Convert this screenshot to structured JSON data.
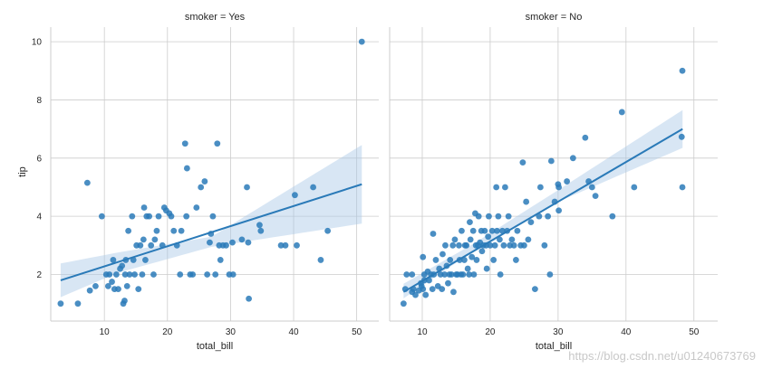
{
  "chart_data": [
    {
      "type": "scatter",
      "title": "smoker = Yes",
      "xlabel": "total_bill",
      "ylabel": "tip",
      "xlim": [
        1.5,
        53.5
      ],
      "ylim": [
        0.4,
        10.5
      ],
      "xticks": [
        10,
        20,
        30,
        40,
        50
      ],
      "yticks": [
        2,
        4,
        6,
        8,
        10
      ],
      "grid": true,
      "colors": {
        "points": "#2a7ab8",
        "line": "#2a7ab8",
        "band": "#a9c8e6"
      },
      "regression": {
        "x": [
          3.07,
          50.81
        ],
        "y": [
          1.8,
          5.1
        ]
      },
      "confidence_band": {
        "x": [
          3.07,
          12,
          27,
          50.81
        ],
        "lower": [
          1.22,
          2.05,
          2.95,
          3.75
        ],
        "upper": [
          2.38,
          2.75,
          3.3,
          6.45
        ]
      },
      "points": [
        [
          3.07,
          1.0
        ],
        [
          5.8,
          1.0
        ],
        [
          7.3,
          5.15
        ],
        [
          7.7,
          1.45
        ],
        [
          8.6,
          1.6
        ],
        [
          9.6,
          4.0
        ],
        [
          10.3,
          2.0
        ],
        [
          10.6,
          1.6
        ],
        [
          10.8,
          2.0
        ],
        [
          11.2,
          1.75
        ],
        [
          11.4,
          2.5
        ],
        [
          11.6,
          1.5
        ],
        [
          11.9,
          2.0
        ],
        [
          12.2,
          1.5
        ],
        [
          12.5,
          2.2
        ],
        [
          12.8,
          2.3
        ],
        [
          13.0,
          1.0
        ],
        [
          13.2,
          1.1
        ],
        [
          13.3,
          2.0
        ],
        [
          13.6,
          1.6
        ],
        [
          13.4,
          2.5
        ],
        [
          13.8,
          3.5
        ],
        [
          14.0,
          2.0
        ],
        [
          14.4,
          4.0
        ],
        [
          14.6,
          2.5
        ],
        [
          14.8,
          2.0
        ],
        [
          15.1,
          3.0
        ],
        [
          15.4,
          1.5
        ],
        [
          15.7,
          3.0
        ],
        [
          16.0,
          2.0
        ],
        [
          16.2,
          3.2
        ],
        [
          16.3,
          4.3
        ],
        [
          16.5,
          2.5
        ],
        [
          16.7,
          4.0
        ],
        [
          17.1,
          4.0
        ],
        [
          17.4,
          3.0
        ],
        [
          17.8,
          2.0
        ],
        [
          18.0,
          3.2
        ],
        [
          18.3,
          3.5
        ],
        [
          18.6,
          4.0
        ],
        [
          19.2,
          3.0
        ],
        [
          19.5,
          4.3
        ],
        [
          19.8,
          4.2
        ],
        [
          20.3,
          4.1
        ],
        [
          20.6,
          4.0
        ],
        [
          21.0,
          3.5
        ],
        [
          21.5,
          3.0
        ],
        [
          22.0,
          2.0
        ],
        [
          22.2,
          3.5
        ],
        [
          22.8,
          6.5
        ],
        [
          23.0,
          4.0
        ],
        [
          23.1,
          5.65
        ],
        [
          23.6,
          2.0
        ],
        [
          24.0,
          2.0
        ],
        [
          24.6,
          4.3
        ],
        [
          25.3,
          5.0
        ],
        [
          25.9,
          5.2
        ],
        [
          26.3,
          2.0
        ],
        [
          26.7,
          3.1
        ],
        [
          26.9,
          3.4
        ],
        [
          27.2,
          4.0
        ],
        [
          27.6,
          2.0
        ],
        [
          27.9,
          6.5
        ],
        [
          28.2,
          3.0
        ],
        [
          28.4,
          2.5
        ],
        [
          28.8,
          3.0
        ],
        [
          29.3,
          3.0
        ],
        [
          29.8,
          2.0
        ],
        [
          30.4,
          2.0
        ],
        [
          30.3,
          3.1
        ],
        [
          31.8,
          3.2
        ],
        [
          32.8,
          3.1
        ],
        [
          32.6,
          5.0
        ],
        [
          32.9,
          1.17
        ],
        [
          34.6,
          3.7
        ],
        [
          34.8,
          3.5
        ],
        [
          38.0,
          3.0
        ],
        [
          38.7,
          3.0
        ],
        [
          40.2,
          4.73
        ],
        [
          40.5,
          3.0
        ],
        [
          43.1,
          5.0
        ],
        [
          44.3,
          2.5
        ],
        [
          45.4,
          3.5
        ],
        [
          50.81,
          10.0
        ]
      ]
    },
    {
      "type": "scatter",
      "title": "smoker = No",
      "xlabel": "total_bill",
      "ylabel": "",
      "xlim": [
        5.2,
        53.5
      ],
      "ylim": [
        0.4,
        10.5
      ],
      "xticks": [
        10,
        20,
        30,
        40,
        50
      ],
      "yticks": [
        2,
        4,
        6,
        8,
        10
      ],
      "grid": true,
      "colors": {
        "points": "#2a7ab8",
        "line": "#2a7ab8",
        "band": "#a9c8e6"
      },
      "regression": {
        "x": [
          7.25,
          48.33
        ],
        "y": [
          1.4,
          7.0
        ]
      },
      "confidence_band": {
        "x": [
          7.25,
          17.5,
          30,
          48.33
        ],
        "lower": [
          1.18,
          2.8,
          4.5,
          6.35
        ],
        "upper": [
          1.68,
          3.05,
          4.9,
          7.65
        ]
      },
      "points": [
        [
          7.25,
          1.0
        ],
        [
          7.5,
          1.5
        ],
        [
          7.7,
          2.0
        ],
        [
          8.5,
          2.0
        ],
        [
          8.5,
          1.4
        ],
        [
          8.7,
          1.5
        ],
        [
          9.0,
          1.3
        ],
        [
          9.5,
          1.45
        ],
        [
          9.8,
          1.7
        ],
        [
          9.9,
          1.6
        ],
        [
          10.1,
          1.5
        ],
        [
          10.3,
          1.8
        ],
        [
          10.3,
          2.0
        ],
        [
          10.1,
          2.6
        ],
        [
          10.5,
          1.3
        ],
        [
          10.8,
          2.1
        ],
        [
          11.0,
          1.8
        ],
        [
          11.3,
          2.0
        ],
        [
          11.5,
          1.5
        ],
        [
          11.7,
          2.0
        ],
        [
          11.6,
          3.4
        ],
        [
          12.0,
          2.5
        ],
        [
          12.3,
          1.6
        ],
        [
          12.5,
          2.2
        ],
        [
          12.7,
          2.0
        ],
        [
          12.9,
          1.5
        ],
        [
          13.0,
          2.7
        ],
        [
          13.3,
          2.0
        ],
        [
          13.4,
          3.0
        ],
        [
          13.6,
          2.3
        ],
        [
          13.8,
          1.7
        ],
        [
          14.0,
          2.0
        ],
        [
          14.1,
          2.5
        ],
        [
          14.3,
          2.0
        ],
        [
          14.5,
          3.0
        ],
        [
          14.6,
          1.4
        ],
        [
          14.8,
          3.2
        ],
        [
          15.0,
          2.0
        ],
        [
          15.2,
          2.0
        ],
        [
          15.4,
          3.0
        ],
        [
          15.5,
          2.5
        ],
        [
          15.7,
          2.0
        ],
        [
          15.8,
          3.5
        ],
        [
          16.0,
          2.0
        ],
        [
          16.2,
          2.5
        ],
        [
          16.3,
          3.0
        ],
        [
          16.5,
          3.0
        ],
        [
          16.7,
          2.2
        ],
        [
          16.9,
          2.0
        ],
        [
          17.0,
          3.8
        ],
        [
          17.1,
          3.2
        ],
        [
          17.3,
          2.6
        ],
        [
          17.5,
          3.5
        ],
        [
          17.6,
          2.0
        ],
        [
          17.8,
          4.1
        ],
        [
          17.9,
          3.0
        ],
        [
          18.0,
          2.5
        ],
        [
          18.2,
          3.0
        ],
        [
          18.3,
          4.0
        ],
        [
          18.5,
          3.1
        ],
        [
          18.7,
          3.5
        ],
        [
          18.8,
          2.8
        ],
        [
          19.0,
          3.0
        ],
        [
          19.2,
          3.5
        ],
        [
          19.4,
          3.0
        ],
        [
          19.5,
          2.2
        ],
        [
          19.7,
          3.3
        ],
        [
          19.8,
          4.0
        ],
        [
          20.0,
          3.0
        ],
        [
          20.3,
          3.5
        ],
        [
          20.5,
          2.5
        ],
        [
          20.7,
          3.0
        ],
        [
          20.9,
          5.0
        ],
        [
          21.0,
          3.5
        ],
        [
          21.2,
          4.0
        ],
        [
          21.4,
          3.2
        ],
        [
          21.5,
          2.0
        ],
        [
          21.8,
          3.5
        ],
        [
          22.0,
          3.0
        ],
        [
          22.2,
          5.0
        ],
        [
          22.5,
          3.5
        ],
        [
          22.7,
          4.0
        ],
        [
          22.9,
          3.0
        ],
        [
          23.2,
          3.2
        ],
        [
          23.5,
          3.0
        ],
        [
          23.8,
          2.5
        ],
        [
          24.0,
          3.5
        ],
        [
          24.5,
          3.0
        ],
        [
          24.8,
          5.85
        ],
        [
          25.0,
          3.0
        ],
        [
          25.3,
          4.5
        ],
        [
          25.6,
          3.2
        ],
        [
          26.0,
          3.8
        ],
        [
          26.6,
          1.5
        ],
        [
          27.2,
          4.0
        ],
        [
          27.4,
          5.0
        ],
        [
          28.0,
          3.0
        ],
        [
          28.5,
          4.0
        ],
        [
          28.8,
          2.0
        ],
        [
          29.0,
          5.9
        ],
        [
          29.5,
          4.5
        ],
        [
          30.0,
          5.1
        ],
        [
          30.1,
          5.0
        ],
        [
          30.1,
          4.2
        ],
        [
          31.3,
          5.2
        ],
        [
          32.2,
          6.0
        ],
        [
          34.0,
          6.7
        ],
        [
          34.5,
          5.2
        ],
        [
          35.0,
          5.0
        ],
        [
          35.5,
          4.7
        ],
        [
          38.0,
          4.0
        ],
        [
          39.4,
          7.58
        ],
        [
          41.2,
          5.0
        ],
        [
          48.3,
          9.0
        ],
        [
          48.2,
          6.73
        ],
        [
          48.3,
          5.0
        ]
      ]
    }
  ],
  "watermark": "https://blog.csdn.net/u012406737​69"
}
